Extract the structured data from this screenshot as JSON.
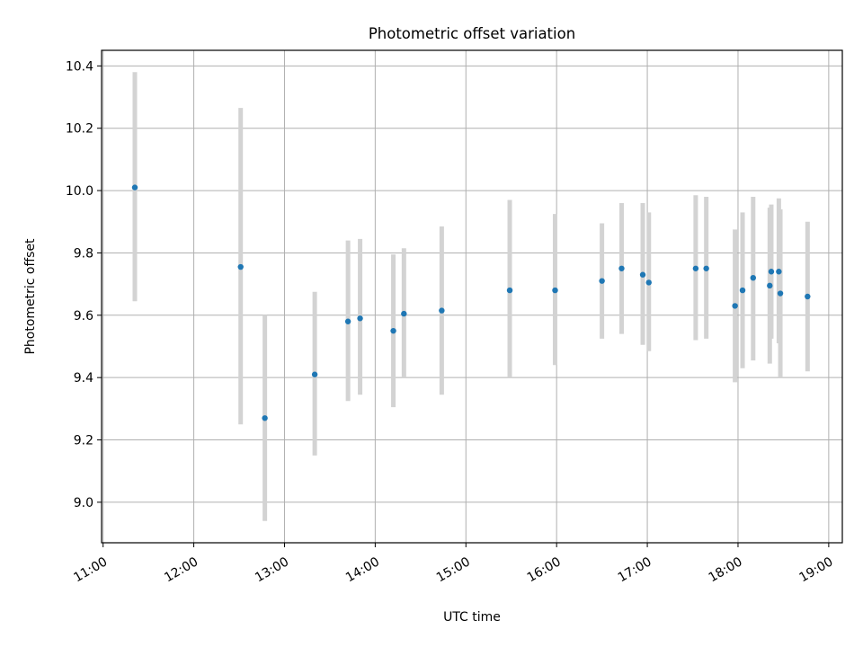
{
  "chart_data": {
    "type": "scatter",
    "title": "Photometric offset variation",
    "xlabel": "UTC time",
    "ylabel": "Photometric offset",
    "xlim": [
      "10:59",
      "19:09"
    ],
    "ylim": [
      8.87,
      10.45
    ],
    "x_ticks": [
      "11:00",
      "12:00",
      "13:00",
      "14:00",
      "15:00",
      "16:00",
      "17:00",
      "18:00",
      "19:00"
    ],
    "y_ticks": [
      "9.0",
      "9.2",
      "9.4",
      "9.6",
      "9.8",
      "10.0",
      "10.2",
      "10.4"
    ],
    "grid": true,
    "colors": {
      "point": "#1f77b4",
      "errorbar": "#d3d3d3",
      "grid": "#b0b0b0"
    },
    "series": [
      {
        "points": [
          {
            "x": "11:21",
            "y": 10.01,
            "low": 9.645,
            "high": 10.38
          },
          {
            "x": "12:31",
            "y": 9.755,
            "low": 9.25,
            "high": 10.265
          },
          {
            "x": "12:47",
            "y": 9.27,
            "low": 8.94,
            "high": 9.6
          },
          {
            "x": "13:20",
            "y": 9.41,
            "low": 9.15,
            "high": 9.675
          },
          {
            "x": "13:42",
            "y": 9.58,
            "low": 9.325,
            "high": 9.84
          },
          {
            "x": "13:50",
            "y": 9.59,
            "low": 9.345,
            "high": 9.845
          },
          {
            "x": "14:12",
            "y": 9.55,
            "low": 9.305,
            "high": 9.795
          },
          {
            "x": "14:19",
            "y": 9.605,
            "low": 9.4,
            "high": 9.815
          },
          {
            "x": "14:44",
            "y": 9.615,
            "low": 9.345,
            "high": 9.885
          },
          {
            "x": "15:29",
            "y": 9.68,
            "low": 9.4,
            "high": 9.97
          },
          {
            "x": "15:59",
            "y": 9.68,
            "low": 9.44,
            "high": 9.925
          },
          {
            "x": "16:30",
            "y": 9.71,
            "low": 9.525,
            "high": 9.895
          },
          {
            "x": "16:43",
            "y": 9.75,
            "low": 9.54,
            "high": 9.96
          },
          {
            "x": "16:57",
            "y": 9.73,
            "low": 9.505,
            "high": 9.96
          },
          {
            "x": "17:01",
            "y": 9.705,
            "low": 9.485,
            "high": 9.93
          },
          {
            "x": "17:32",
            "y": 9.75,
            "low": 9.52,
            "high": 9.985
          },
          {
            "x": "17:39",
            "y": 9.75,
            "low": 9.525,
            "high": 9.98
          },
          {
            "x": "17:58",
            "y": 9.63,
            "low": 9.385,
            "high": 9.875
          },
          {
            "x": "18:03",
            "y": 9.68,
            "low": 9.43,
            "high": 9.93
          },
          {
            "x": "18:10",
            "y": 9.72,
            "low": 9.455,
            "high": 9.98
          },
          {
            "x": "18:21",
            "y": 9.695,
            "low": 9.445,
            "high": 9.945
          },
          {
            "x": "18:22",
            "y": 9.74,
            "low": 9.525,
            "high": 9.955
          },
          {
            "x": "18:27",
            "y": 9.74,
            "low": 9.51,
            "high": 9.975
          },
          {
            "x": "18:28",
            "y": 9.67,
            "low": 9.4,
            "high": 9.94
          },
          {
            "x": "18:46",
            "y": 9.66,
            "low": 9.42,
            "high": 9.9
          }
        ]
      }
    ]
  }
}
